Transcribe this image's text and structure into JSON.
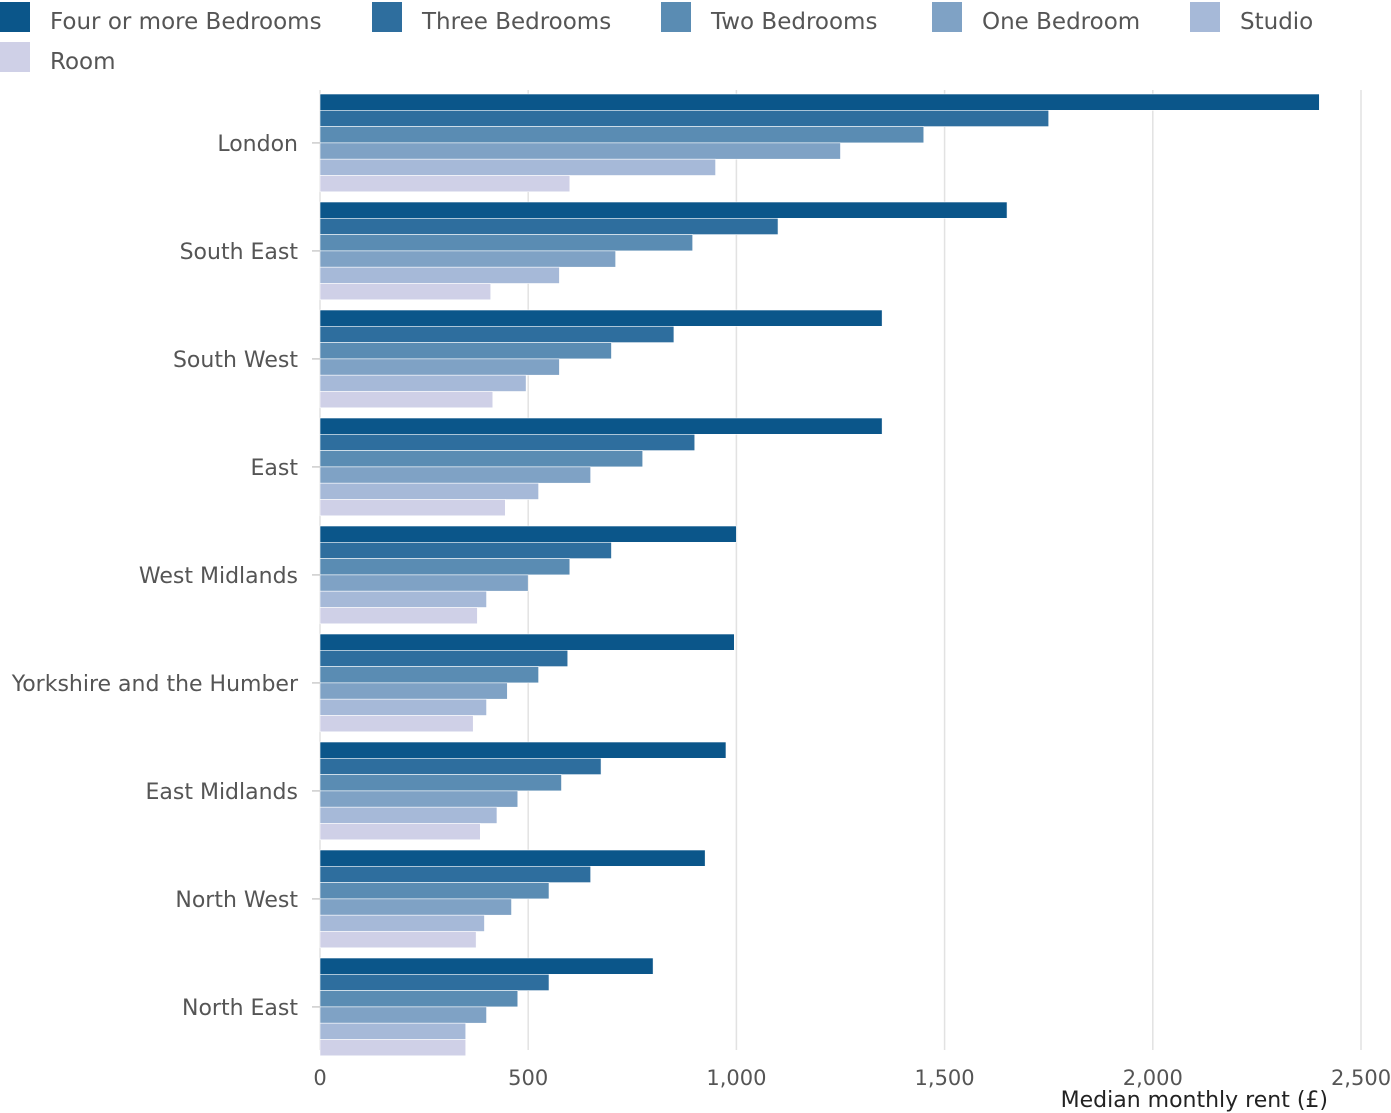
{
  "chart_data": {
    "type": "bar",
    "orientation": "horizontal",
    "title": "",
    "xlabel": "Median monthly rent (£)",
    "ylabel": "",
    "xlim": [
      0,
      2500
    ],
    "xticks": [
      0,
      500,
      1000,
      1500,
      2000,
      2500
    ],
    "xtick_labels": [
      "0",
      "500",
      "1,000",
      "1,500",
      "2,000",
      "2,500"
    ],
    "grid": true,
    "legend_position": "top",
    "categories": [
      "London",
      "South East",
      "South West",
      "East",
      "West Midlands",
      "Yorkshire and the Humber",
      "East Midlands",
      "North West",
      "North East"
    ],
    "series": [
      {
        "name": "Four or more Bedrooms",
        "color": "#0b568a",
        "values": [
          2400,
          1650,
          1350,
          1350,
          1000,
          995,
          975,
          925,
          800
        ]
      },
      {
        "name": "Three Bedrooms",
        "color": "#2e6e9e",
        "values": [
          1750,
          1100,
          850,
          900,
          700,
          595,
          675,
          650,
          550
        ]
      },
      {
        "name": "Two Bedrooms",
        "color": "#5a8cb3",
        "values": [
          1450,
          895,
          700,
          775,
          600,
          525,
          580,
          550,
          475
        ]
      },
      {
        "name": "One Bedroom",
        "color": "#7fa2c5",
        "values": [
          1250,
          710,
          575,
          650,
          500,
          450,
          475,
          460,
          400
        ]
      },
      {
        "name": "Studio",
        "color": "#a6b9d8",
        "values": [
          950,
          575,
          495,
          525,
          400,
          400,
          425,
          395,
          350
        ]
      },
      {
        "name": "Room",
        "color": "#cfd0e7",
        "values": [
          600,
          410,
          415,
          445,
          378,
          368,
          385,
          375,
          350
        ]
      }
    ]
  }
}
